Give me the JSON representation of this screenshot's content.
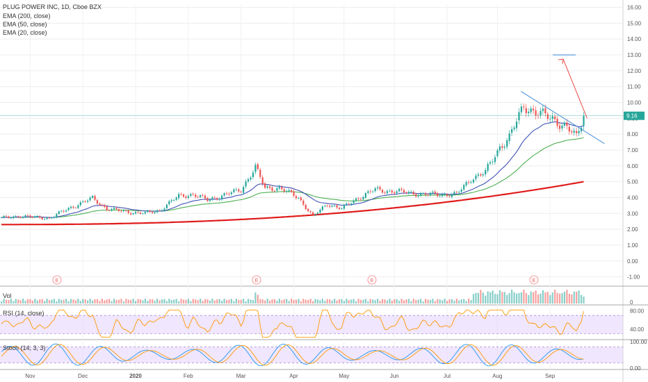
{
  "header": {
    "symbol_line": "PLUG POWER INC, 1D, Cboe BZX",
    "indicators": [
      "EMA (200, close)",
      "EMA (50, close)",
      "EMA (20, close)"
    ]
  },
  "price_badge": "9.16",
  "earnings_marker": "E",
  "panes": {
    "volume_label": "Vol",
    "rsi_label": "RSI (14, close)",
    "stoch_label": "Stoch (14, 3, 3)"
  },
  "colors": {
    "up": "#26a69a",
    "down": "#ef5350",
    "ema20": "#3f51b5",
    "ema50": "#4caf50",
    "ema200": "#e01b1b",
    "rsi": "#ff9800",
    "stoch_k": "#2196f3",
    "stoch_d": "#ff9800",
    "band_fill": "#e6d6fb",
    "trendline": "#4a90d9",
    "arrow": "#e53935",
    "target": "#4a90d9"
  },
  "chart_data": {
    "type": "candlestick",
    "ylim": [
      -1.5,
      16.2
    ],
    "yticks": [
      "16.00",
      "15.00",
      "14.00",
      "13.00",
      "12.00",
      "11.00",
      "10.00",
      "9.00",
      "8.00",
      "7.00",
      "6.00",
      "5.00",
      "4.00",
      "3.00",
      "2.00",
      "1.00",
      "0.00",
      "-1.00"
    ],
    "xticks": [
      "Nov",
      "Dec",
      "2020",
      "Feb",
      "Mar",
      "Apr",
      "May",
      "Jun",
      "Jul",
      "Aug",
      "Sep"
    ],
    "last_price": 9.16,
    "anchors": [
      [
        0,
        2.7
      ],
      [
        8,
        2.85
      ],
      [
        14,
        2.75
      ],
      [
        20,
        2.7
      ],
      [
        30,
        3.45
      ],
      [
        38,
        3.95
      ],
      [
        44,
        3.3
      ],
      [
        52,
        3.1
      ],
      [
        60,
        3.0
      ],
      [
        66,
        3.2
      ],
      [
        74,
        4.1
      ],
      [
        80,
        4.2
      ],
      [
        86,
        3.85
      ],
      [
        94,
        4.2
      ],
      [
        100,
        4.5
      ],
      [
        106,
        5.9
      ],
      [
        110,
        4.6
      ],
      [
        116,
        4.6
      ],
      [
        124,
        4.0
      ],
      [
        130,
        2.8
      ],
      [
        136,
        3.6
      ],
      [
        142,
        3.3
      ],
      [
        148,
        3.9
      ],
      [
        156,
        4.5
      ],
      [
        162,
        4.4
      ],
      [
        168,
        4.35
      ],
      [
        176,
        4.2
      ],
      [
        184,
        4.2
      ],
      [
        190,
        4.2
      ],
      [
        196,
        5.2
      ],
      [
        202,
        5.6
      ],
      [
        208,
        7.2
      ],
      [
        212,
        7.8
      ],
      [
        218,
        9.8
      ],
      [
        224,
        9.3
      ],
      [
        230,
        9.0
      ],
      [
        236,
        8.4
      ],
      [
        240,
        7.8
      ],
      [
        243,
        9.16
      ]
    ],
    "ema_levels": {
      "ema20_end": 8.4,
      "ema50_end": 7.3,
      "ema200_end": 5.0
    },
    "trendline": {
      "from_price": 10.7,
      "to_price": 7.4
    },
    "projection": {
      "from_price": 9.0,
      "target_price": 13.0
    },
    "rsi_ticks": [
      "80.00",
      "40.00"
    ],
    "rsi_levels": [
      70,
      30
    ],
    "stoch_ticks": [
      "100.00",
      "0.00"
    ],
    "stoch_levels": [
      80,
      20
    ]
  }
}
